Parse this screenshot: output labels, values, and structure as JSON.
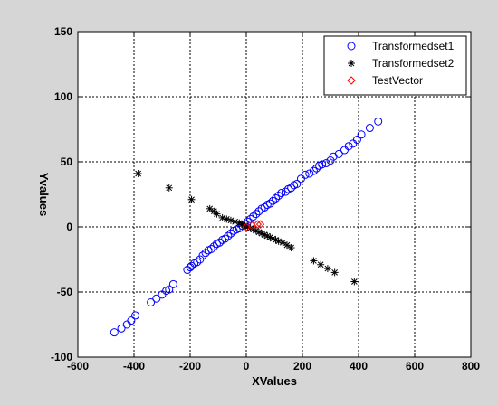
{
  "chart_data": {
    "type": "scatter",
    "xlabel": "XValues",
    "ylabel": "Yvalues",
    "xlim": [
      -600,
      800
    ],
    "ylim": [
      -100,
      150
    ],
    "xticks": [
      -600,
      -400,
      -200,
      0,
      200,
      400,
      600,
      800
    ],
    "yticks": [
      -100,
      -50,
      0,
      50,
      100,
      150
    ],
    "grid": true,
    "legend_position": "top-right",
    "background": "#d6d6d6",
    "series": [
      {
        "name": "Transformedset1",
        "marker": "circle",
        "color": "#0000ff",
        "x": [
          -470,
          -445,
          -425,
          -410,
          -395,
          -340,
          -320,
          -300,
          -285,
          -275,
          -260,
          -210,
          -200,
          -195,
          -185,
          -175,
          -165,
          -155,
          -145,
          -135,
          -125,
          -115,
          -105,
          -95,
          -85,
          -75,
          -65,
          -55,
          -45,
          -35,
          -25,
          -15,
          -5,
          5,
          15,
          25,
          35,
          45,
          55,
          65,
          75,
          85,
          95,
          105,
          115,
          125,
          140,
          150,
          160,
          170,
          180,
          195,
          210,
          225,
          240,
          250,
          260,
          270,
          285,
          300,
          310,
          330,
          350,
          365,
          380,
          395,
          410,
          440,
          470
        ],
        "y": [
          -81,
          -78,
          -75,
          -72,
          -68,
          -58,
          -55,
          -52,
          -49,
          -48,
          -44,
          -33,
          -31,
          -30,
          -28,
          -27,
          -25,
          -22,
          -20,
          -18,
          -17,
          -15,
          -13,
          -12,
          -10,
          -9,
          -7,
          -5,
          -3,
          -2,
          -1,
          1,
          2,
          4,
          6,
          8,
          10,
          12,
          14,
          15,
          17,
          18,
          20,
          22,
          24,
          26,
          27,
          29,
          30,
          32,
          33,
          37,
          40,
          41,
          43,
          45,
          47,
          48,
          49,
          51,
          54,
          56,
          59,
          62,
          64,
          67,
          71,
          76,
          81
        ]
      },
      {
        "name": "Transformedset2",
        "marker": "star",
        "color": "#000000",
        "x": [
          -385,
          -275,
          -195,
          -130,
          -115,
          -105,
          -85,
          -70,
          -55,
          -40,
          -25,
          -15,
          -5,
          5,
          15,
          25,
          35,
          45,
          55,
          65,
          75,
          85,
          95,
          105,
          115,
          130,
          145,
          160,
          240,
          265,
          290,
          315,
          385
        ],
        "y": [
          41,
          30,
          21,
          14,
          12,
          10,
          7,
          6,
          5,
          4,
          3,
          2,
          1,
          0,
          -1,
          -2,
          -3,
          -4,
          -5,
          -6,
          -7,
          -8,
          -9,
          -10,
          -11,
          -12,
          -14,
          -16,
          -26,
          -29,
          -32,
          -35,
          -42
        ]
      },
      {
        "name": "TestVector",
        "marker": "diamond",
        "color": "#ff0000",
        "x": [
          0,
          20,
          40,
          50
        ],
        "y": [
          0,
          1,
          2,
          2
        ]
      }
    ]
  }
}
